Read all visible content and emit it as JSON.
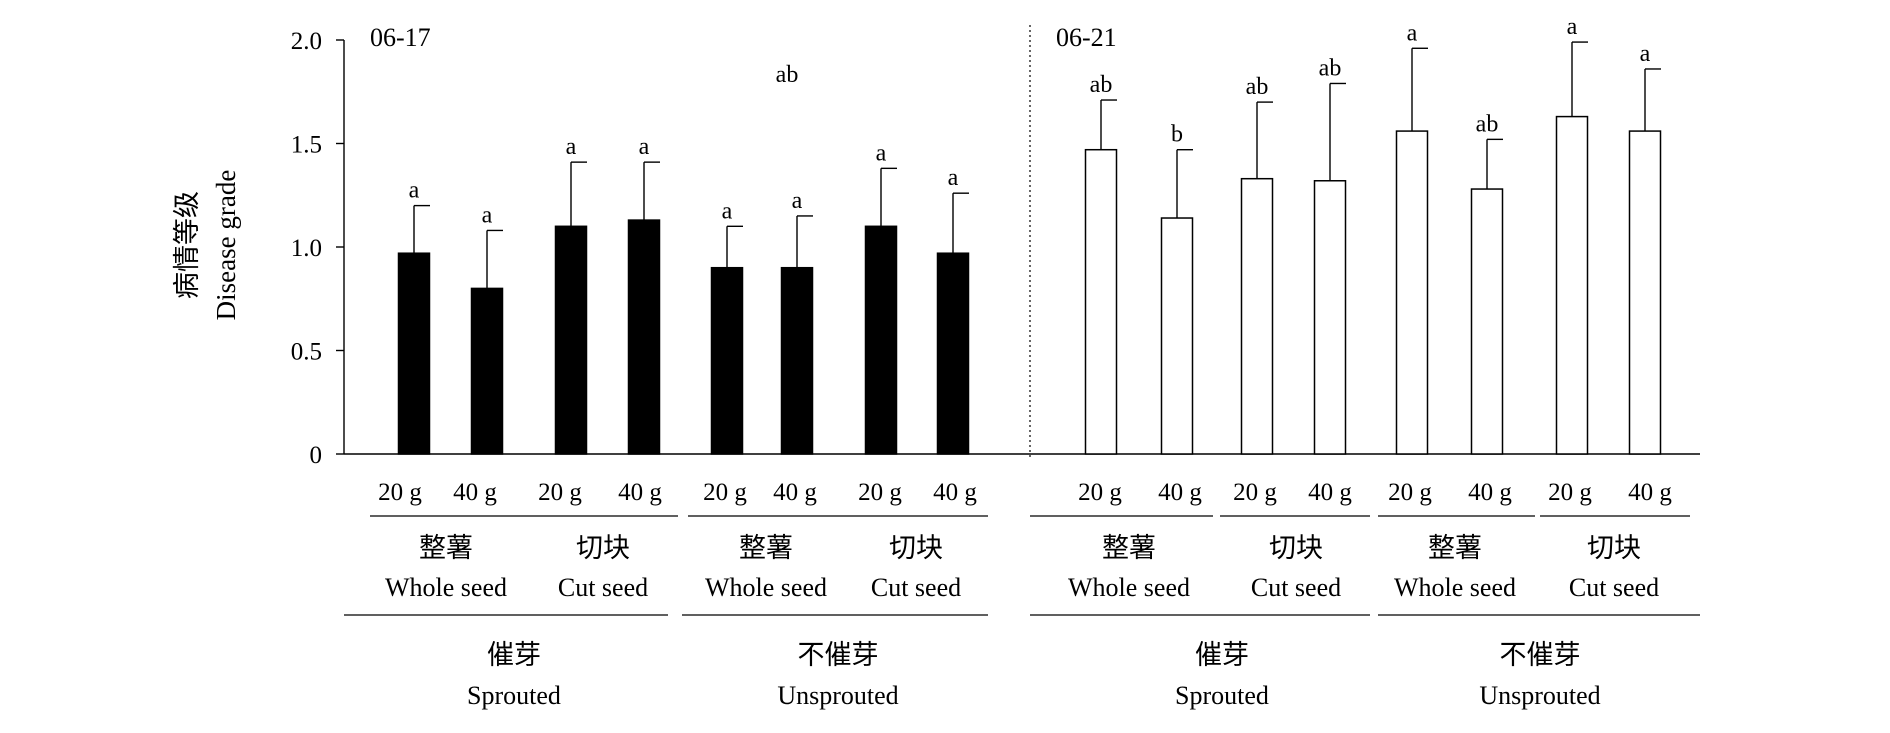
{
  "chart_data": {
    "type": "bar",
    "ylabel_cn": "病情等级",
    "ylabel_en": "Disease grade",
    "ylim": [
      0,
      2.0
    ],
    "yticks": [
      "0",
      "0.5",
      "1.0",
      "1.5",
      "2.0"
    ],
    "yticks_values": [
      0,
      0.5,
      1.0,
      1.5,
      2.0
    ],
    "stray_label": "ab",
    "panels": [
      {
        "label": "06-17",
        "style": "filled",
        "bars": [
          {
            "weight": "20 g",
            "value": 0.97,
            "error": 0.23,
            "sig": "a"
          },
          {
            "weight": "40 g",
            "value": 0.8,
            "error": 0.28,
            "sig": "a"
          },
          {
            "weight": "20 g",
            "value": 1.1,
            "error": 0.31,
            "sig": "a"
          },
          {
            "weight": "40 g",
            "value": 1.13,
            "error": 0.28,
            "sig": "a"
          },
          {
            "weight": "20 g",
            "value": 0.9,
            "error": 0.2,
            "sig": "a"
          },
          {
            "weight": "40 g",
            "value": 0.9,
            "error": 0.25,
            "sig": "a"
          },
          {
            "weight": "20 g",
            "value": 1.1,
            "error": 0.28,
            "sig": "a"
          },
          {
            "weight": "40 g",
            "value": 0.97,
            "error": 0.29,
            "sig": "a"
          }
        ],
        "seed_groups": [
          {
            "cn": "整薯",
            "en": "Whole seed"
          },
          {
            "cn": "切块",
            "en": "Cut seed"
          },
          {
            "cn": "整薯",
            "en": "Whole seed"
          },
          {
            "cn": "切块",
            "en": "Cut seed"
          }
        ],
        "treatment_groups": [
          {
            "cn": "催芽",
            "en": "Sprouted"
          },
          {
            "cn": "不催芽",
            "en": "Unsprouted"
          }
        ]
      },
      {
        "label": "06-21",
        "style": "open",
        "bars": [
          {
            "weight": "20 g",
            "value": 1.47,
            "error": 0.24,
            "sig": "ab"
          },
          {
            "weight": "40 g",
            "value": 1.14,
            "error": 0.33,
            "sig": "b"
          },
          {
            "weight": "20 g",
            "value": 1.33,
            "error": 0.37,
            "sig": "ab"
          },
          {
            "weight": "40 g",
            "value": 1.32,
            "error": 0.47,
            "sig": "ab"
          },
          {
            "weight": "20 g",
            "value": 1.56,
            "error": 0.4,
            "sig": "a"
          },
          {
            "weight": "40 g",
            "value": 1.28,
            "error": 0.24,
            "sig": "ab"
          },
          {
            "weight": "20 g",
            "value": 1.63,
            "error": 0.36,
            "sig": "a"
          },
          {
            "weight": "40 g",
            "value": 1.56,
            "error": 0.3,
            "sig": "a"
          }
        ],
        "seed_groups": [
          {
            "cn": "整薯",
            "en": "Whole seed"
          },
          {
            "cn": "切块",
            "en": "Cut seed"
          },
          {
            "cn": "整薯",
            "en": "Whole seed"
          },
          {
            "cn": "切块",
            "en": "Cut seed"
          }
        ],
        "treatment_groups": [
          {
            "cn": "催芽",
            "en": "Sprouted"
          },
          {
            "cn": "不催芽",
            "en": "Unsprouted"
          }
        ]
      }
    ]
  }
}
